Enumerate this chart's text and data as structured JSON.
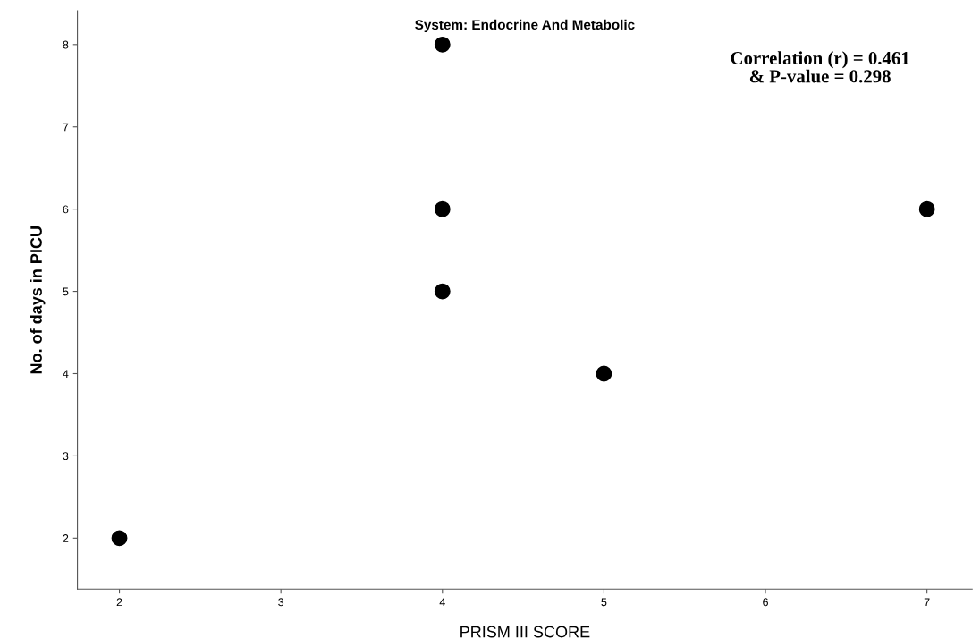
{
  "chart_data": {
    "type": "scatter",
    "title": "System: Endocrine And Metabolic",
    "xlabel": "PRISM III SCORE",
    "ylabel": "No. of days in PICU",
    "x": [
      2,
      4,
      4,
      4,
      5,
      7
    ],
    "series": [
      {
        "color": "#000000",
        "values": [
          2,
          8,
          6,
          5,
          4,
          6
        ]
      }
    ],
    "xlim": [
      1.74,
      7.28
    ],
    "xticks": [
      2,
      3,
      4,
      5,
      6,
      7
    ],
    "ylim": [
      1.38,
      8.41
    ],
    "yticks": [
      2,
      3,
      4,
      5,
      6,
      7,
      8
    ],
    "marker": "circle",
    "grid": false,
    "legend": false,
    "annotations": [
      "Correlation (r) = 0.461\n& P-value = 0.298"
    ]
  }
}
